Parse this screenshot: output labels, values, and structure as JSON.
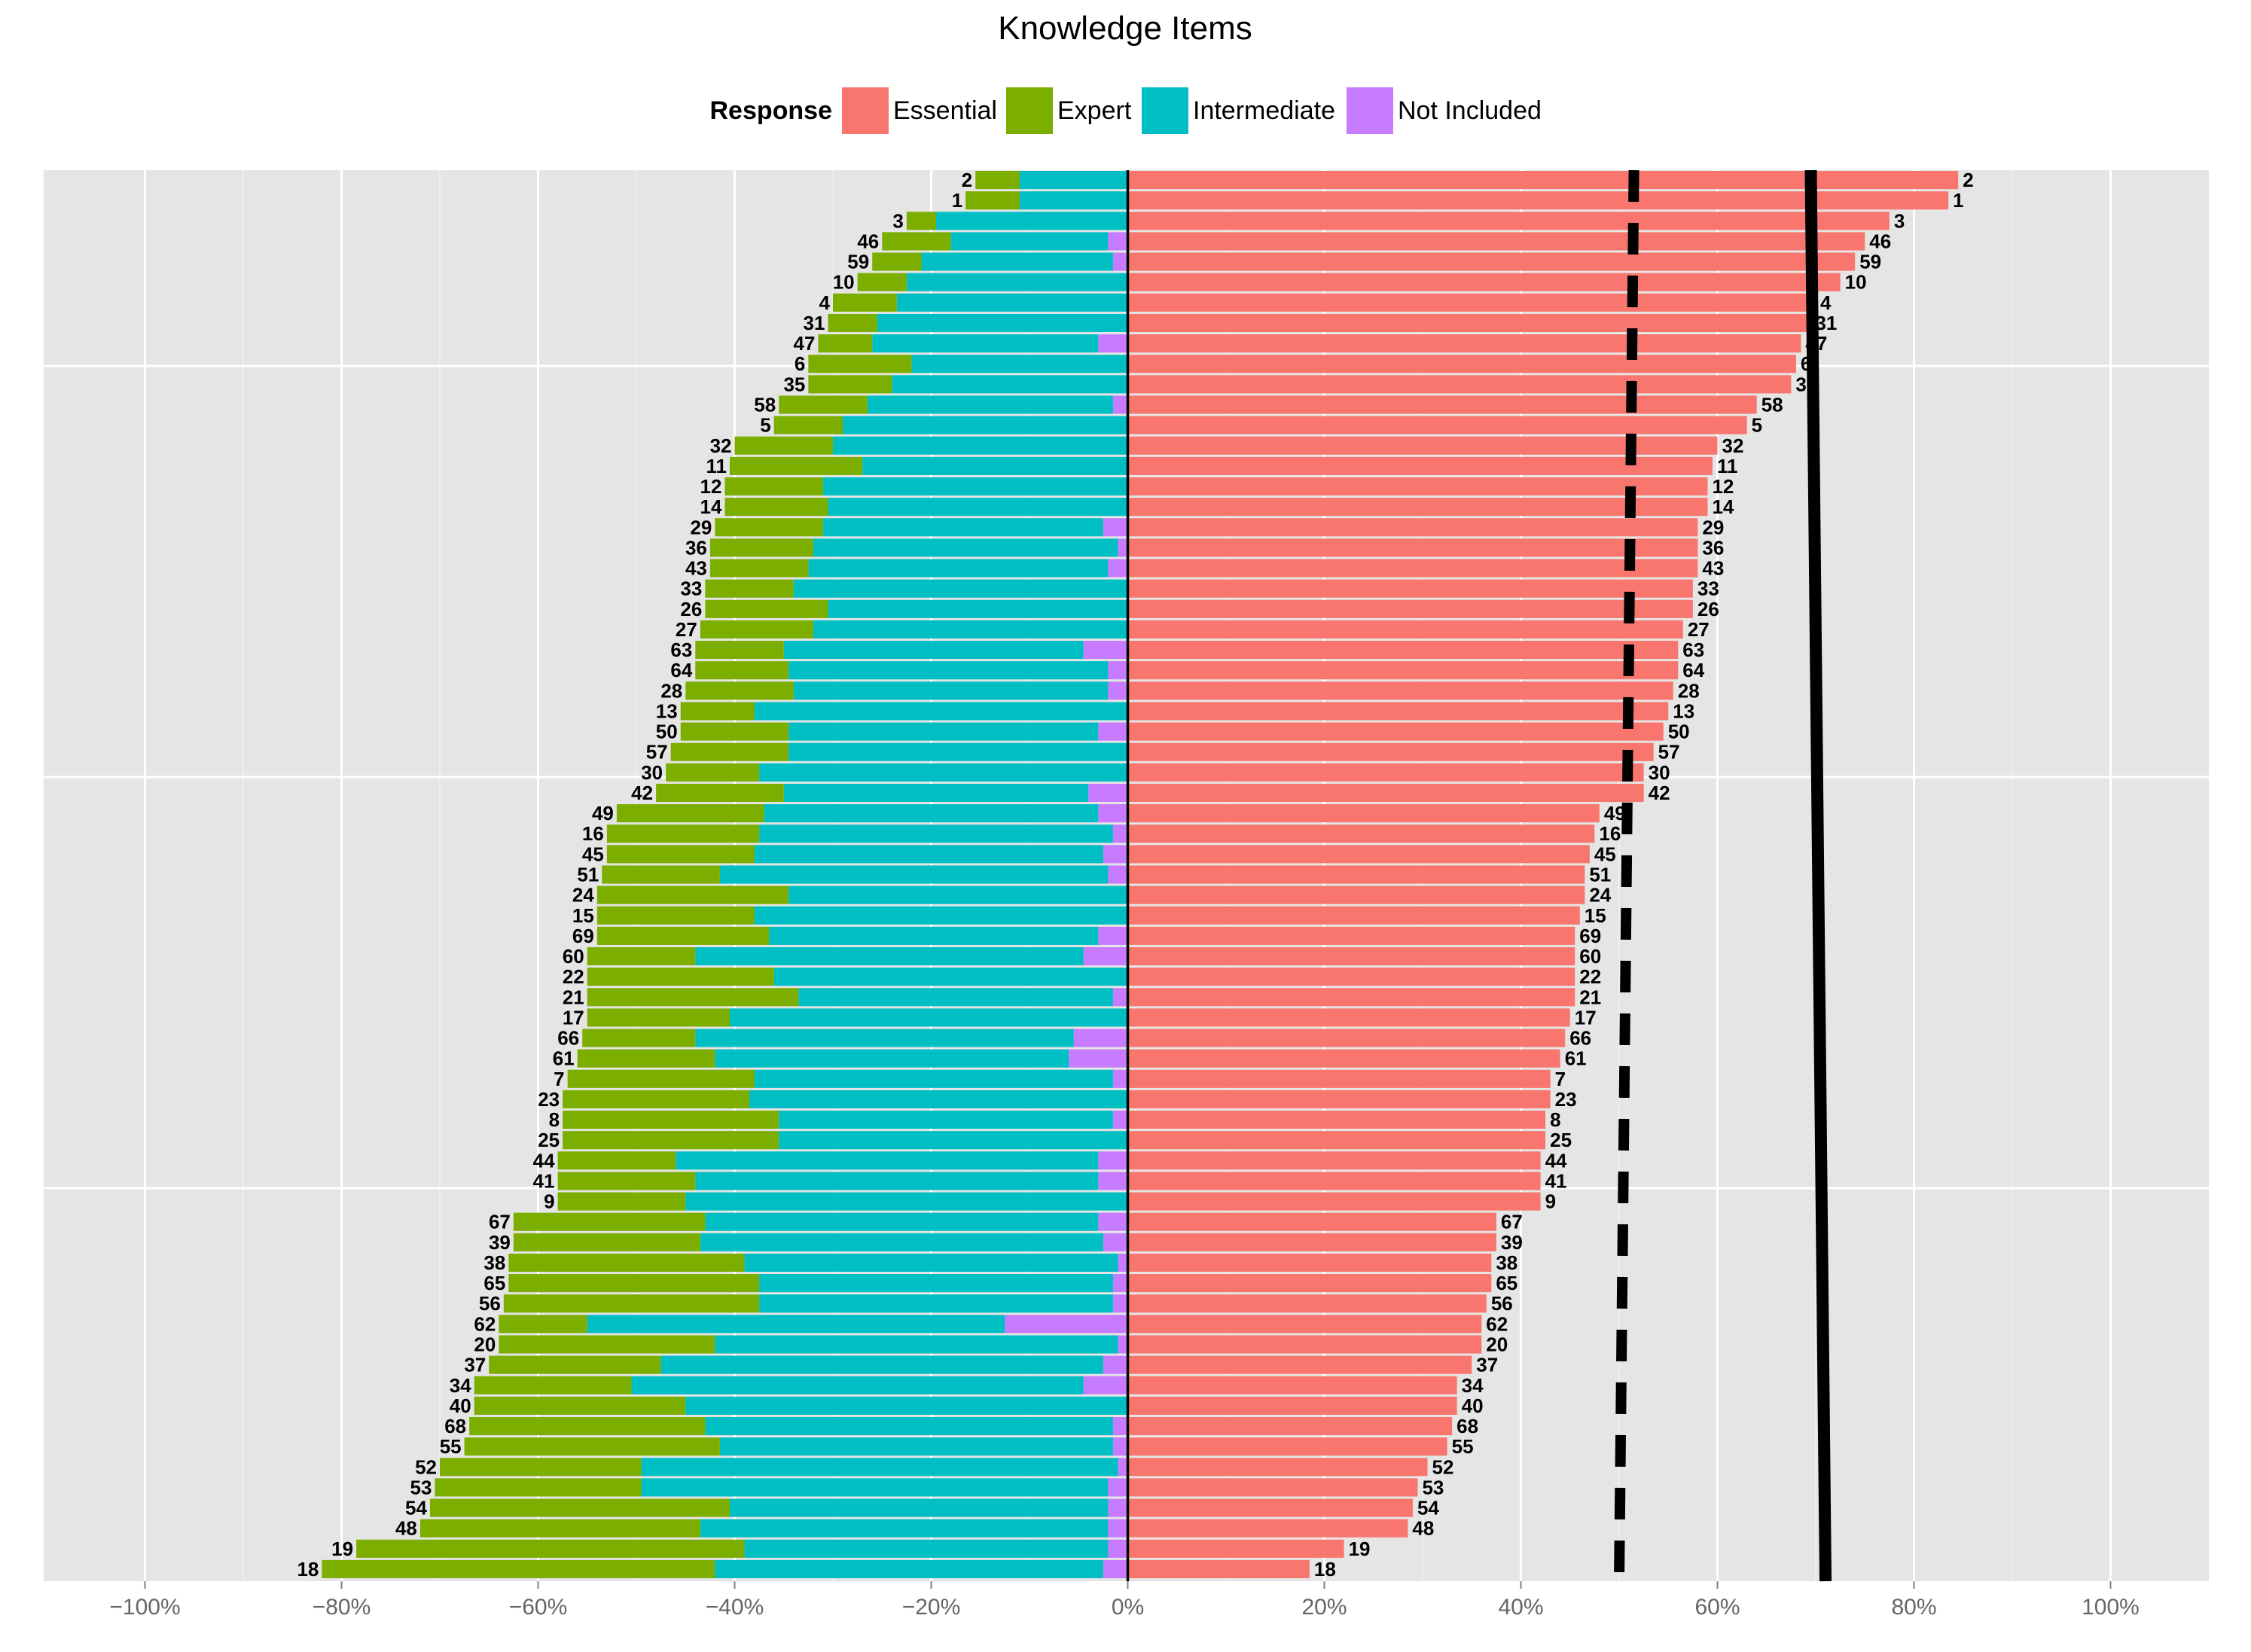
{
  "chart_data": {
    "type": "bar",
    "orientation": "horizontal-diverging",
    "title": "Knowledge Items",
    "legend": {
      "title": "Response",
      "placement": "top",
      "entries": [
        {
          "name": "Essential",
          "color": "#F8766D"
        },
        {
          "name": "Expert",
          "color": "#7CAE00"
        },
        {
          "name": "Intermediate",
          "color": "#00BFC4"
        },
        {
          "name": "Not Included",
          "color": "#C77CFF"
        }
      ]
    },
    "xlim": [
      -105,
      105
    ],
    "xticks": [
      -100,
      -80,
      -60,
      -40,
      -20,
      0,
      20,
      40,
      60,
      80,
      100
    ],
    "xtick_labels": [
      "−100%",
      "−80%",
      "−60%",
      "−40%",
      "−20%",
      "0%",
      "20%",
      "40%",
      "60%",
      "80%",
      "100%"
    ],
    "grid": true,
    "reference_lines": [
      {
        "style": "dashed",
        "x_top": 51.5,
        "x_bottom": 50.0
      },
      {
        "style": "solid",
        "x_top": 69.5,
        "x_bottom": 71.0
      }
    ],
    "series_order_negative": [
      "Not Included",
      "Intermediate",
      "Expert"
    ],
    "items": [
      {
        "item": "2",
        "essential": 84.5,
        "not_included": 0.0,
        "intermediate": 11.0,
        "expert": 4.5
      },
      {
        "item": "1",
        "essential": 83.5,
        "not_included": 0.0,
        "intermediate": 11.0,
        "expert": 5.5
      },
      {
        "item": "3",
        "essential": 77.5,
        "not_included": 0.0,
        "intermediate": 19.5,
        "expert": 3.0
      },
      {
        "item": "46",
        "essential": 75.0,
        "not_included": 2.0,
        "intermediate": 16.0,
        "expert": 7.0
      },
      {
        "item": "59",
        "essential": 74.0,
        "not_included": 1.5,
        "intermediate": 19.5,
        "expert": 5.0
      },
      {
        "item": "10",
        "essential": 72.5,
        "not_included": 0.0,
        "intermediate": 22.5,
        "expert": 5.0
      },
      {
        "item": "4",
        "essential": 70.0,
        "not_included": 0.0,
        "intermediate": 23.5,
        "expert": 6.5
      },
      {
        "item": "31",
        "essential": 69.5,
        "not_included": 0.0,
        "intermediate": 25.5,
        "expert": 5.0
      },
      {
        "item": "47",
        "essential": 68.5,
        "not_included": 3.0,
        "intermediate": 23.0,
        "expert": 5.5
      },
      {
        "item": "6",
        "essential": 68.0,
        "not_included": 0.0,
        "intermediate": 22.0,
        "expert": 10.5
      },
      {
        "item": "35",
        "essential": 67.5,
        "not_included": 0.0,
        "intermediate": 24.0,
        "expert": 8.5
      },
      {
        "item": "58",
        "essential": 64.0,
        "not_included": 1.5,
        "intermediate": 25.0,
        "expert": 9.0
      },
      {
        "item": "5",
        "essential": 63.0,
        "not_included": 0.0,
        "intermediate": 29.0,
        "expert": 7.0
      },
      {
        "item": "32",
        "essential": 60.0,
        "not_included": 0.0,
        "intermediate": 30.0,
        "expert": 10.0
      },
      {
        "item": "11",
        "essential": 59.5,
        "not_included": 0.0,
        "intermediate": 27.0,
        "expert": 13.5
      },
      {
        "item": "12",
        "essential": 59.0,
        "not_included": 0.0,
        "intermediate": 31.0,
        "expert": 10.0
      },
      {
        "item": "14",
        "essential": 59.0,
        "not_included": 0.0,
        "intermediate": 30.5,
        "expert": 10.5
      },
      {
        "item": "29",
        "essential": 58.0,
        "not_included": 2.5,
        "intermediate": 28.5,
        "expert": 11.0
      },
      {
        "item": "36",
        "essential": 58.0,
        "not_included": 1.0,
        "intermediate": 31.0,
        "expert": 10.5
      },
      {
        "item": "43",
        "essential": 58.0,
        "not_included": 2.0,
        "intermediate": 30.5,
        "expert": 10.0
      },
      {
        "item": "33",
        "essential": 57.5,
        "not_included": 0.0,
        "intermediate": 34.0,
        "expert": 9.0
      },
      {
        "item": "26",
        "essential": 57.5,
        "not_included": 0.0,
        "intermediate": 30.5,
        "expert": 12.5
      },
      {
        "item": "27",
        "essential": 56.5,
        "not_included": 0.0,
        "intermediate": 32.0,
        "expert": 11.5
      },
      {
        "item": "63",
        "essential": 56.0,
        "not_included": 4.5,
        "intermediate": 30.5,
        "expert": 9.0
      },
      {
        "item": "64",
        "essential": 56.0,
        "not_included": 2.0,
        "intermediate": 32.5,
        "expert": 9.5
      },
      {
        "item": "28",
        "essential": 55.5,
        "not_included": 2.0,
        "intermediate": 32.0,
        "expert": 11.0
      },
      {
        "item": "13",
        "essential": 55.0,
        "not_included": 0.0,
        "intermediate": 38.0,
        "expert": 7.5
      },
      {
        "item": "50",
        "essential": 54.5,
        "not_included": 3.0,
        "intermediate": 31.5,
        "expert": 11.0
      },
      {
        "item": "57",
        "essential": 53.5,
        "not_included": 0.0,
        "intermediate": 34.5,
        "expert": 12.0
      },
      {
        "item": "30",
        "essential": 52.5,
        "not_included": 0.0,
        "intermediate": 37.5,
        "expert": 9.5
      },
      {
        "item": "42",
        "essential": 52.5,
        "not_included": 4.0,
        "intermediate": 31.0,
        "expert": 13.0
      },
      {
        "item": "49",
        "essential": 48.0,
        "not_included": 3.0,
        "intermediate": 34.0,
        "expert": 15.0
      },
      {
        "item": "16",
        "essential": 47.5,
        "not_included": 1.5,
        "intermediate": 36.0,
        "expert": 15.5
      },
      {
        "item": "45",
        "essential": 47.0,
        "not_included": 2.5,
        "intermediate": 35.5,
        "expert": 15.0
      },
      {
        "item": "51",
        "essential": 46.5,
        "not_included": 2.0,
        "intermediate": 39.5,
        "expert": 12.0
      },
      {
        "item": "24",
        "essential": 46.5,
        "not_included": 0.0,
        "intermediate": 34.5,
        "expert": 19.5
      },
      {
        "item": "15",
        "essential": 46.0,
        "not_included": 0.0,
        "intermediate": 38.0,
        "expert": 16.0
      },
      {
        "item": "69",
        "essential": 45.5,
        "not_included": 3.0,
        "intermediate": 33.5,
        "expert": 17.5
      },
      {
        "item": "60",
        "essential": 45.5,
        "not_included": 4.5,
        "intermediate": 39.5,
        "expert": 11.0
      },
      {
        "item": "22",
        "essential": 45.5,
        "not_included": 0.0,
        "intermediate": 36.0,
        "expert": 19.0
      },
      {
        "item": "21",
        "essential": 45.5,
        "not_included": 1.5,
        "intermediate": 32.0,
        "expert": 21.5
      },
      {
        "item": "17",
        "essential": 45.0,
        "not_included": 0.0,
        "intermediate": 40.5,
        "expert": 14.5
      },
      {
        "item": "66",
        "essential": 44.5,
        "not_included": 5.5,
        "intermediate": 38.5,
        "expert": 11.5
      },
      {
        "item": "61",
        "essential": 44.0,
        "not_included": 6.0,
        "intermediate": 36.0,
        "expert": 14.0
      },
      {
        "item": "7",
        "essential": 43.0,
        "not_included": 1.5,
        "intermediate": 36.5,
        "expert": 19.0
      },
      {
        "item": "23",
        "essential": 43.0,
        "not_included": 0.0,
        "intermediate": 38.5,
        "expert": 19.0
      },
      {
        "item": "8",
        "essential": 42.5,
        "not_included": 1.5,
        "intermediate": 34.0,
        "expert": 22.0
      },
      {
        "item": "25",
        "essential": 42.5,
        "not_included": 0.0,
        "intermediate": 35.5,
        "expert": 22.0
      },
      {
        "item": "44",
        "essential": 42.0,
        "not_included": 3.0,
        "intermediate": 43.0,
        "expert": 12.0
      },
      {
        "item": "41",
        "essential": 42.0,
        "not_included": 3.0,
        "intermediate": 41.0,
        "expert": 14.0
      },
      {
        "item": "9",
        "essential": 42.0,
        "not_included": 0.0,
        "intermediate": 45.0,
        "expert": 13.0
      },
      {
        "item": "67",
        "essential": 37.5,
        "not_included": 3.0,
        "intermediate": 40.0,
        "expert": 19.5
      },
      {
        "item": "39",
        "essential": 37.5,
        "not_included": 2.5,
        "intermediate": 41.0,
        "expert": 19.0
      },
      {
        "item": "38",
        "essential": 37.0,
        "not_included": 1.0,
        "intermediate": 38.0,
        "expert": 24.0
      },
      {
        "item": "65",
        "essential": 37.0,
        "not_included": 1.5,
        "intermediate": 36.0,
        "expert": 25.5
      },
      {
        "item": "56",
        "essential": 36.5,
        "not_included": 1.5,
        "intermediate": 36.0,
        "expert": 26.0
      },
      {
        "item": "62",
        "essential": 36.0,
        "not_included": 12.5,
        "intermediate": 42.5,
        "expert": 9.0
      },
      {
        "item": "20",
        "essential": 36.0,
        "not_included": 1.0,
        "intermediate": 41.0,
        "expert": 22.0
      },
      {
        "item": "37",
        "essential": 35.0,
        "not_included": 2.5,
        "intermediate": 45.0,
        "expert": 17.5
      },
      {
        "item": "34",
        "essential": 33.5,
        "not_included": 4.5,
        "intermediate": 46.0,
        "expert": 16.0
      },
      {
        "item": "40",
        "essential": 33.5,
        "not_included": 0.0,
        "intermediate": 45.0,
        "expert": 21.5
      },
      {
        "item": "68",
        "essential": 33.0,
        "not_included": 1.5,
        "intermediate": 41.5,
        "expert": 24.0
      },
      {
        "item": "55",
        "essential": 32.5,
        "not_included": 1.5,
        "intermediate": 40.0,
        "expert": 26.0
      },
      {
        "item": "52",
        "essential": 30.5,
        "not_included": 1.0,
        "intermediate": 48.5,
        "expert": 20.5
      },
      {
        "item": "53",
        "essential": 29.5,
        "not_included": 2.0,
        "intermediate": 47.5,
        "expert": 21.0
      },
      {
        "item": "54",
        "essential": 29.0,
        "not_included": 2.0,
        "intermediate": 38.5,
        "expert": 30.5
      },
      {
        "item": "48",
        "essential": 28.5,
        "not_included": 2.0,
        "intermediate": 41.5,
        "expert": 28.5
      },
      {
        "item": "19",
        "essential": 22.0,
        "not_included": 2.0,
        "intermediate": 37.0,
        "expert": 39.5
      },
      {
        "item": "18",
        "essential": 18.5,
        "not_included": 2.5,
        "intermediate": 39.5,
        "expert": 40.0
      }
    ]
  }
}
